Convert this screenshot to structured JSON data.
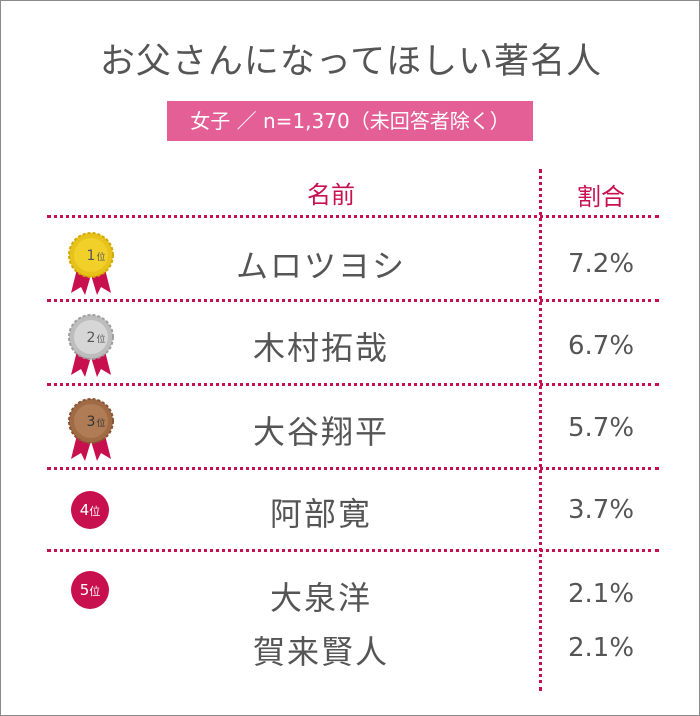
{
  "title": "お父さんになってほしい著名人",
  "subtitle": "女子 ／ n=1,370（未回答者除く）",
  "headers": {
    "name": "名前",
    "ratio": "割合"
  },
  "colors": {
    "accent": "#c8104e",
    "badge": "#e35f95",
    "gold": "#e7c21b",
    "silver": "#bdbdbd",
    "bronze": "#a06a45",
    "text": "#555555"
  },
  "rows": [
    {
      "rank_num": "1",
      "rank_suffix": "位",
      "name": "ムロツヨシ",
      "pct": "7.2%"
    },
    {
      "rank_num": "2",
      "rank_suffix": "位",
      "name": "木村拓哉",
      "pct": "6.7%"
    },
    {
      "rank_num": "3",
      "rank_suffix": "位",
      "name": "大谷翔平",
      "pct": "5.7%"
    },
    {
      "rank_num": "4",
      "rank_suffix": "位",
      "name": "阿部寛",
      "pct": "3.7%"
    },
    {
      "rank_num": "5",
      "rank_suffix": "位",
      "name": "大泉洋",
      "pct": "2.1%"
    },
    {
      "rank_num": "",
      "rank_suffix": "",
      "name": "賀来賢人",
      "pct": "2.1%"
    }
  ],
  "chart_data": {
    "type": "table",
    "title": "お父さんになってほしい著名人",
    "subtitle": "女子 ／ n=1,370（未回答者除く）",
    "columns": [
      "名前",
      "割合"
    ],
    "categories": [
      "ムロツヨシ",
      "木村拓哉",
      "大谷翔平",
      "阿部寛",
      "大泉洋",
      "賀来賢人"
    ],
    "values": [
      7.2,
      6.7,
      5.7,
      3.7,
      2.1,
      2.1
    ],
    "ranks": [
      1,
      2,
      3,
      4,
      5,
      5
    ]
  }
}
